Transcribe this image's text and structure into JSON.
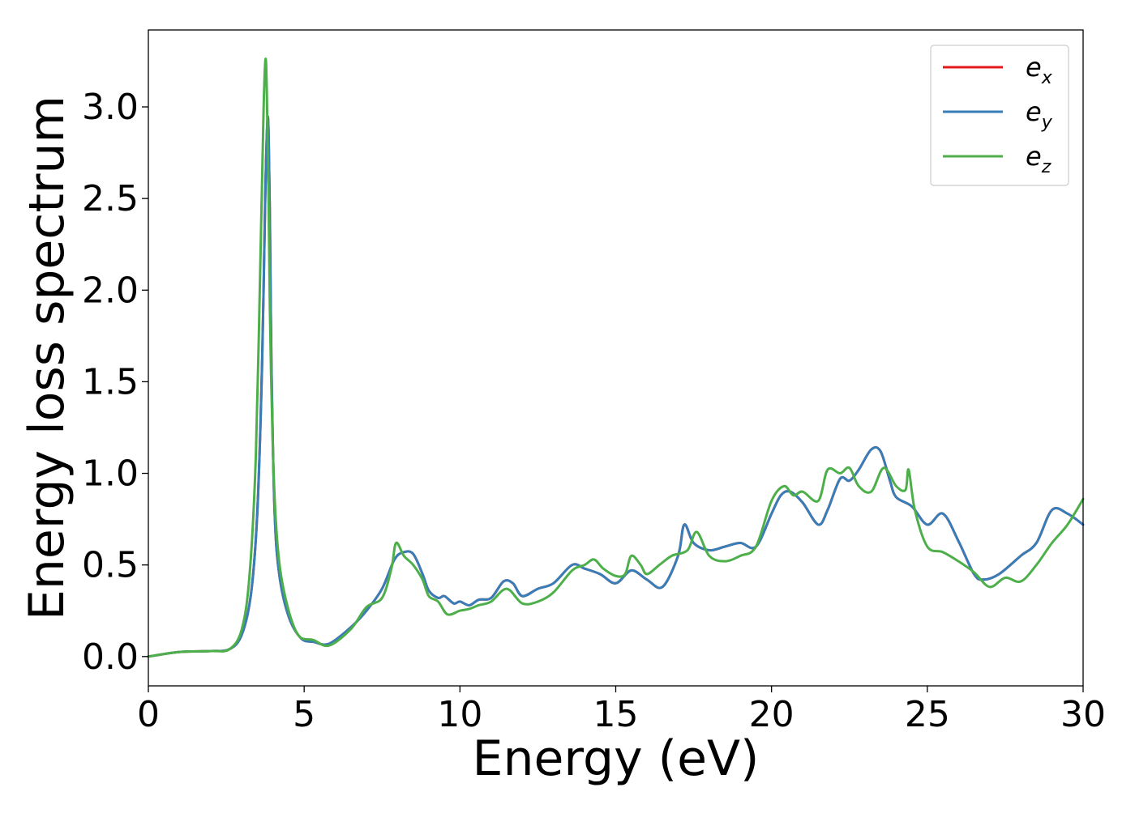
{
  "chart_data": {
    "type": "line",
    "title": "",
    "xlabel": "Energy (eV)",
    "ylabel": "Energy loss spectrum",
    "xlim": [
      0,
      30
    ],
    "ylim": [
      -0.16,
      3.42
    ],
    "xticks": [
      0,
      5,
      10,
      15,
      20,
      25,
      30
    ],
    "yticks": [
      0.0,
      0.5,
      1.0,
      1.5,
      2.0,
      2.5,
      3.0
    ],
    "xtick_labels": [
      "0",
      "5",
      "10",
      "15",
      "20",
      "25",
      "30"
    ],
    "ytick_labels": [
      "0.0",
      "0.5",
      "1.0",
      "1.5",
      "2.0",
      "2.5",
      "3.0"
    ],
    "grid": false,
    "legend": {
      "position": "top-right",
      "entries": [
        {
          "base": "e",
          "sub": "x",
          "color": "#e41a1c"
        },
        {
          "base": "e",
          "sub": "y",
          "color": "#377eb8"
        },
        {
          "base": "e",
          "sub": "z",
          "color": "#4daf4a"
        }
      ]
    },
    "series": [
      {
        "name": "e_x",
        "color": "#e41a1c",
        "x": [
          0,
          1,
          2,
          2.6,
          3.0,
          3.3,
          3.5,
          3.65,
          3.75,
          3.82,
          3.86,
          3.9,
          3.95,
          4.05,
          4.2,
          4.5,
          4.9,
          5.3,
          5.8,
          6.5,
          7.0,
          7.5,
          7.9,
          8.2,
          8.5,
          8.8,
          9.0,
          9.3,
          9.5,
          9.8,
          10.0,
          10.3,
          10.6,
          11.0,
          11.4,
          11.7,
          12.0,
          12.5,
          13.0,
          13.6,
          14.0,
          14.5,
          15.0,
          15.5,
          16.0,
          16.5,
          17.0,
          17.2,
          17.5,
          18.0,
          18.5,
          19.0,
          19.5,
          20.0,
          20.3,
          20.6,
          21.0,
          21.5,
          21.8,
          22.2,
          22.5,
          22.8,
          23.2,
          23.5,
          23.8,
          24.0,
          24.5,
          25.0,
          25.5,
          26.0,
          26.5,
          26.8,
          27.3,
          28.0,
          28.5,
          29.0,
          29.5,
          30.0
        ],
        "y": [
          0.0,
          0.025,
          0.03,
          0.04,
          0.12,
          0.35,
          0.8,
          1.6,
          2.5,
          2.92,
          2.85,
          2.4,
          1.6,
          0.8,
          0.45,
          0.22,
          0.1,
          0.08,
          0.07,
          0.16,
          0.25,
          0.37,
          0.53,
          0.57,
          0.56,
          0.45,
          0.36,
          0.32,
          0.33,
          0.29,
          0.3,
          0.28,
          0.31,
          0.32,
          0.41,
          0.4,
          0.33,
          0.37,
          0.4,
          0.5,
          0.48,
          0.45,
          0.4,
          0.47,
          0.42,
          0.38,
          0.55,
          0.72,
          0.62,
          0.58,
          0.6,
          0.62,
          0.6,
          0.78,
          0.88,
          0.9,
          0.84,
          0.72,
          0.8,
          0.97,
          0.96,
          1.02,
          1.13,
          1.12,
          0.96,
          0.87,
          0.82,
          0.72,
          0.78,
          0.63,
          0.45,
          0.42,
          0.45,
          0.55,
          0.62,
          0.8,
          0.78,
          0.72
        ]
      },
      {
        "name": "e_y",
        "color": "#377eb8",
        "x": [
          0,
          1,
          2,
          2.6,
          3.0,
          3.3,
          3.5,
          3.65,
          3.75,
          3.82,
          3.86,
          3.9,
          3.95,
          4.05,
          4.2,
          4.5,
          4.9,
          5.3,
          5.8,
          6.5,
          7.0,
          7.5,
          7.9,
          8.2,
          8.5,
          8.8,
          9.0,
          9.3,
          9.5,
          9.8,
          10.0,
          10.3,
          10.6,
          11.0,
          11.4,
          11.7,
          12.0,
          12.5,
          13.0,
          13.6,
          14.0,
          14.5,
          15.0,
          15.5,
          16.0,
          16.5,
          17.0,
          17.2,
          17.5,
          18.0,
          18.5,
          19.0,
          19.5,
          20.0,
          20.3,
          20.6,
          21.0,
          21.5,
          21.8,
          22.2,
          22.5,
          22.8,
          23.2,
          23.5,
          23.8,
          24.0,
          24.5,
          25.0,
          25.5,
          26.0,
          26.5,
          26.8,
          27.3,
          28.0,
          28.5,
          29.0,
          29.5,
          30.0
        ],
        "y": [
          0.0,
          0.025,
          0.03,
          0.04,
          0.12,
          0.35,
          0.8,
          1.6,
          2.5,
          2.92,
          2.85,
          2.4,
          1.6,
          0.8,
          0.45,
          0.22,
          0.1,
          0.08,
          0.07,
          0.16,
          0.25,
          0.37,
          0.53,
          0.57,
          0.56,
          0.45,
          0.36,
          0.32,
          0.33,
          0.29,
          0.3,
          0.28,
          0.31,
          0.32,
          0.41,
          0.4,
          0.33,
          0.37,
          0.4,
          0.5,
          0.48,
          0.45,
          0.4,
          0.47,
          0.42,
          0.38,
          0.55,
          0.72,
          0.62,
          0.58,
          0.6,
          0.62,
          0.6,
          0.78,
          0.88,
          0.9,
          0.84,
          0.72,
          0.8,
          0.97,
          0.96,
          1.02,
          1.13,
          1.12,
          0.96,
          0.87,
          0.82,
          0.72,
          0.78,
          0.63,
          0.45,
          0.42,
          0.45,
          0.55,
          0.62,
          0.8,
          0.78,
          0.72
        ]
      },
      {
        "name": "e_z",
        "color": "#4daf4a",
        "x": [
          0,
          1,
          2,
          2.6,
          3.0,
          3.25,
          3.45,
          3.6,
          3.7,
          3.76,
          3.8,
          3.85,
          3.9,
          4.0,
          4.15,
          4.4,
          4.8,
          5.3,
          5.8,
          6.5,
          7.0,
          7.5,
          7.8,
          7.95,
          8.2,
          8.5,
          8.8,
          9.0,
          9.3,
          9.6,
          10.0,
          10.3,
          10.6,
          11.0,
          11.5,
          12.0,
          12.5,
          13.0,
          13.6,
          14.0,
          14.3,
          14.6,
          15.0,
          15.3,
          15.5,
          15.8,
          16.0,
          16.4,
          16.8,
          17.3,
          17.6,
          18.0,
          18.5,
          19.0,
          19.5,
          20.0,
          20.4,
          20.7,
          21.0,
          21.5,
          21.8,
          22.2,
          22.5,
          22.8,
          23.2,
          23.6,
          24.0,
          24.3,
          24.4,
          24.6,
          25.0,
          25.5,
          26.0,
          26.5,
          27.0,
          27.5,
          28.0,
          28.5,
          29.0,
          29.5,
          30.0
        ],
        "y": [
          0.0,
          0.025,
          0.03,
          0.04,
          0.15,
          0.45,
          1.1,
          2.2,
          3.0,
          3.26,
          3.1,
          2.6,
          1.9,
          1.1,
          0.6,
          0.32,
          0.12,
          0.09,
          0.06,
          0.15,
          0.27,
          0.32,
          0.48,
          0.62,
          0.55,
          0.5,
          0.42,
          0.33,
          0.3,
          0.23,
          0.25,
          0.26,
          0.28,
          0.3,
          0.37,
          0.29,
          0.3,
          0.35,
          0.47,
          0.5,
          0.53,
          0.48,
          0.44,
          0.45,
          0.55,
          0.5,
          0.45,
          0.5,
          0.55,
          0.58,
          0.68,
          0.55,
          0.52,
          0.55,
          0.6,
          0.85,
          0.93,
          0.88,
          0.9,
          0.85,
          1.02,
          1.0,
          1.03,
          0.93,
          0.9,
          1.03,
          0.93,
          0.91,
          1.02,
          0.8,
          0.6,
          0.57,
          0.52,
          0.46,
          0.38,
          0.43,
          0.41,
          0.5,
          0.62,
          0.72,
          0.86
        ]
      }
    ]
  }
}
